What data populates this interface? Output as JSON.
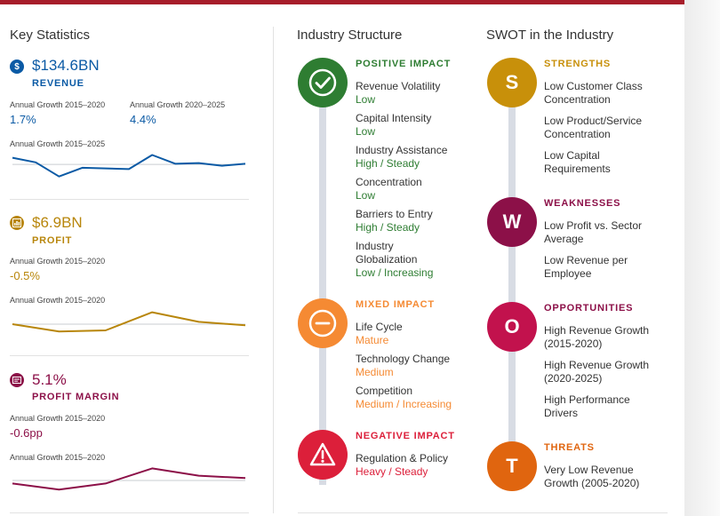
{
  "colors": {
    "accent_red": "#a71d2a",
    "revenue_blue": "#0b5aa5",
    "profit_gold": "#b8860b",
    "margin_maroon": "#8c1048",
    "positive_green": "#2e7d32",
    "mixed_orange": "#f58a33",
    "negative_red": "#dc1f3a"
  },
  "key_statistics": {
    "title": "Key Statistics",
    "revenue": {
      "icon": "dollar-icon",
      "value": "$134.6BN",
      "label": "REVENUE",
      "growth1_label": "Annual Growth 2015–2020",
      "growth1_value": "1.7%",
      "growth2_label": "Annual Growth 2020–2025",
      "growth2_value": "4.4%",
      "chart_label": "Annual Growth 2015–2025"
    },
    "profit": {
      "icon": "chart-box-icon",
      "value": "$6.9BN",
      "label": "PROFIT",
      "growth_label": "Annual Growth 2015–2020",
      "growth_value": "-0.5%",
      "chart_label": "Annual Growth 2015–2020"
    },
    "profit_margin": {
      "icon": "margin-card-icon",
      "value": "5.1%",
      "label": "PROFIT MARGIN",
      "growth_label": "Annual Growth 2015–2020",
      "growth_value": "-0.6pp",
      "chart_label": "Annual Growth 2015–2020"
    }
  },
  "chart_data": [
    {
      "type": "line",
      "title": "Revenue Annual Growth 2015–2025",
      "series": [
        {
          "name": "Revenue growth",
          "values": [
            1.0,
            0.3,
            -1.8,
            -0.5,
            -0.6,
            -0.7,
            1.4,
            0.1,
            0.2,
            -0.2,
            0.1
          ]
        }
      ],
      "baseline": 0,
      "ylim": [
        -2.5,
        2.0
      ]
    },
    {
      "type": "line",
      "title": "Profit Annual Growth 2015–2020",
      "series": [
        {
          "name": "Profit growth",
          "values": [
            0.0,
            -1.3,
            -1.1,
            2.1,
            0.4,
            -0.2
          ]
        }
      ],
      "baseline": 0,
      "ylim": [
        -2.5,
        2.5
      ]
    },
    {
      "type": "line",
      "title": "Profit Margin Annual Growth 2015–2020",
      "series": [
        {
          "name": "Profit margin growth",
          "values": [
            -0.5,
            -1.5,
            -0.5,
            2.0,
            0.8,
            0.4
          ]
        }
      ],
      "baseline": 0,
      "ylim": [
        -2.5,
        2.5
      ]
    }
  ],
  "industry_structure": {
    "title": "Industry Structure",
    "positive": {
      "heading": "POSITIVE IMPACT",
      "icon": "check-circle-icon",
      "items": [
        {
          "name": "Revenue Volatility",
          "value": "Low"
        },
        {
          "name": "Capital Intensity",
          "value": "Low"
        },
        {
          "name": "Industry Assistance",
          "value": "High / Steady"
        },
        {
          "name": "Concentration",
          "value": "Low"
        },
        {
          "name": "Barriers to Entry",
          "value": "High / Steady"
        },
        {
          "name": "Industry\nGlobalization",
          "value": "Low / Increasing"
        }
      ]
    },
    "mixed": {
      "heading": "MIXED IMPACT",
      "icon": "minus-circle-icon",
      "items": [
        {
          "name": "Life Cycle",
          "value": "Mature"
        },
        {
          "name": "Technology Change",
          "value": "Medium"
        },
        {
          "name": "Competition",
          "value": "Medium / Increasing"
        }
      ]
    },
    "negative": {
      "heading": "NEGATIVE IMPACT",
      "icon": "warning-triangle-icon",
      "items": [
        {
          "name": "Regulation & Policy",
          "value": "Heavy / Steady"
        }
      ]
    }
  },
  "swot": {
    "title": "SWOT in the Industry",
    "strengths": {
      "letter": "S",
      "color": "#c8900a",
      "heading": "STRENGTHS",
      "items": [
        "Low Customer Class Concentration",
        "Low Product/Service Concentration",
        "Low Capital Requirements"
      ]
    },
    "weaknesses": {
      "letter": "W",
      "color": "#8c1048",
      "heading": "WEAKNESSES",
      "items": [
        "Low Profit vs. Sector Average",
        "Low Revenue per Employee"
      ]
    },
    "opportunities": {
      "letter": "O",
      "color": "#c2124d",
      "heading": "OPPORTUNITIES",
      "items": [
        "High Revenue Growth (2015-2020)",
        "High Revenue Growth (2020-2025)",
        "High Performance Drivers"
      ]
    },
    "threats": {
      "letter": "T",
      "color": "#e0650f",
      "heading": "THREATS",
      "items": [
        "Very Low Revenue Growth (2005-2020)"
      ]
    }
  }
}
